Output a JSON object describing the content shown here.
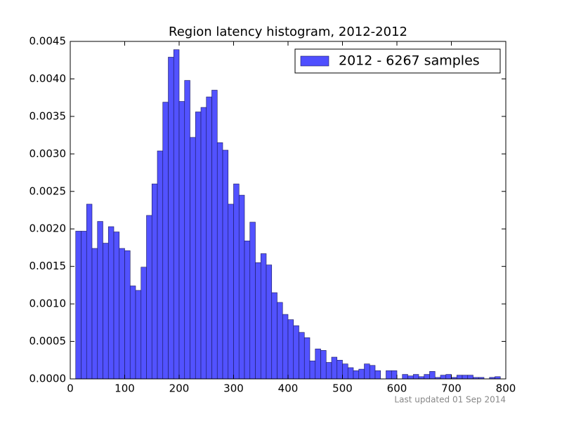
{
  "chart_data": {
    "type": "histogram",
    "title": "Region latency histogram, 2012-2012",
    "bins": [
      10,
      20,
      30,
      40,
      50,
      60,
      70,
      80,
      90,
      100,
      110,
      120,
      130,
      140,
      150,
      160,
      170,
      180,
      190,
      200,
      210,
      220,
      230,
      240,
      250,
      260,
      270,
      280,
      290,
      300,
      310,
      320,
      330,
      340,
      350,
      360,
      370,
      380,
      390,
      400,
      410,
      420,
      430,
      440,
      450,
      460,
      470,
      480,
      490,
      500,
      510,
      520,
      530,
      540,
      550,
      560,
      570,
      580,
      590,
      600,
      610,
      620,
      630,
      640,
      650,
      660,
      670,
      680,
      690,
      700,
      710,
      720,
      730,
      740,
      750,
      760,
      770,
      780,
      790
    ],
    "series": [
      {
        "name": "2012 - 6267 samples",
        "color": "#4f4fff",
        "values": [
          0.00197,
          0.00197,
          0.00233,
          0.00174,
          0.0021,
          0.00181,
          0.00203,
          0.00196,
          0.00174,
          0.00171,
          0.00124,
          0.00118,
          0.00149,
          0.00218,
          0.0026,
          0.00304,
          0.00369,
          0.00429,
          0.00439,
          0.0037,
          0.00398,
          0.00322,
          0.00356,
          0.00362,
          0.00376,
          0.00385,
          0.00315,
          0.00305,
          0.00233,
          0.0026,
          0.00245,
          0.00184,
          0.00209,
          0.00155,
          0.00167,
          0.00152,
          0.00115,
          0.00102,
          0.00086,
          0.00079,
          0.00071,
          0.00062,
          0.00055,
          0.00024,
          0.0004,
          0.00038,
          0.00022,
          0.00029,
          0.00025,
          0.0002,
          0.00015,
          0.00011,
          0.00013,
          0.0002,
          0.00018,
          0.00011,
          0,
          0.00011,
          0.00011,
          0,
          6e-05,
          4e-05,
          6e-05,
          3e-05,
          6e-05,
          0.0001,
          2e-05,
          5e-05,
          6e-05,
          2e-05,
          5e-05,
          5e-05,
          5e-05,
          2e-05,
          2e-05,
          0,
          2e-05,
          3e-05
        ]
      }
    ],
    "xlim": [
      0,
      800
    ],
    "xticks": [
      0,
      100,
      200,
      300,
      400,
      500,
      600,
      700,
      800
    ],
    "ylim": [
      0,
      0.0045
    ],
    "yticks": [
      {
        "value": 0,
        "label": "0.0000"
      },
      {
        "value": 0.0005,
        "label": "0.0005"
      },
      {
        "value": 0.001,
        "label": "0.0010"
      },
      {
        "value": 0.0015,
        "label": "0.0015"
      },
      {
        "value": 0.002,
        "label": "0.0020"
      },
      {
        "value": 0.0025,
        "label": "0.0025"
      },
      {
        "value": 0.003,
        "label": "0.0030"
      },
      {
        "value": 0.0035,
        "label": "0.0035"
      },
      {
        "value": 0.004,
        "label": "0.0040"
      },
      {
        "value": 0.0045,
        "label": "0.0045"
      }
    ],
    "legend": "upper right",
    "grid": false,
    "footer": "Last updated 01 Sep 2014"
  }
}
